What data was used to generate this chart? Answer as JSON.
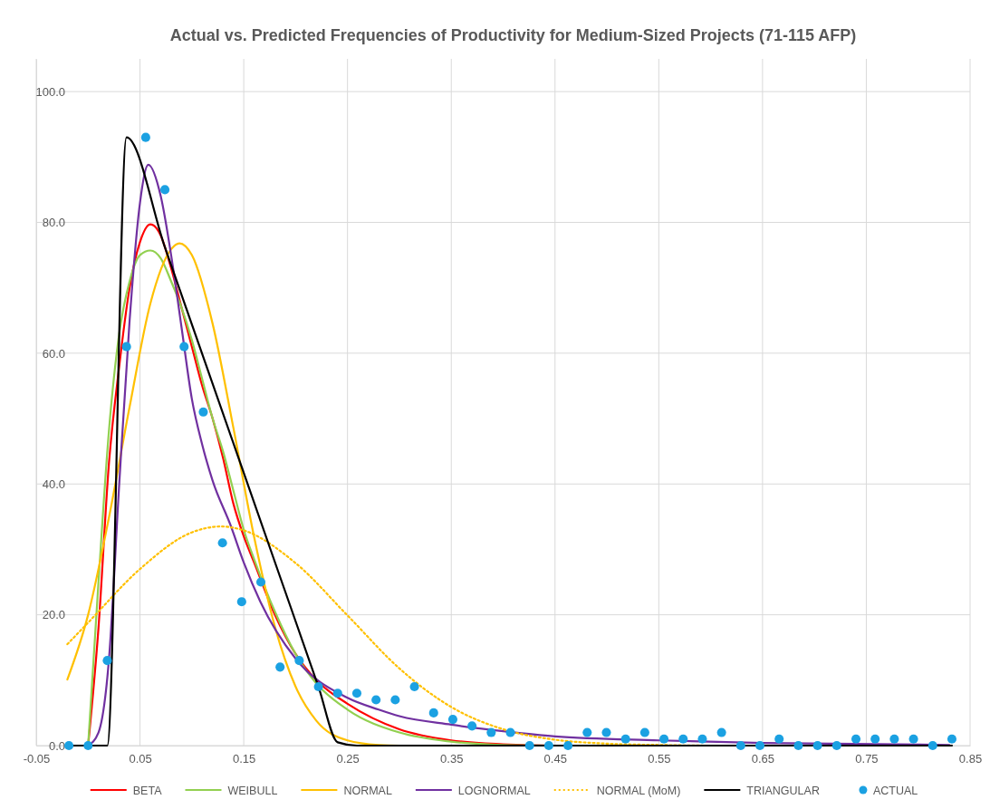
{
  "chart_data": {
    "type": "line",
    "title": "Actual vs. Predicted Frequencies of Productivity for Medium-Sized Projects (71-115 AFP)",
    "xlim": [
      -0.05,
      0.85
    ],
    "xticks": [
      -0.05,
      0.05,
      0.15,
      0.25,
      0.35,
      0.45,
      0.55,
      0.65,
      0.75,
      0.85
    ],
    "ylim": [
      0,
      105
    ],
    "yticks": [
      {
        "value": 0,
        "label": "0.0"
      },
      {
        "value": 20,
        "label": "20.0"
      },
      {
        "value": 40,
        "label": "40.0"
      },
      {
        "value": 60,
        "label": "60.0"
      },
      {
        "value": 80,
        "label": "80.0"
      },
      {
        "value": 100,
        "label": "100.0"
      }
    ],
    "grid": true,
    "legend": "bottom",
    "series": [
      {
        "name": "BETA",
        "color": "#ff0000",
        "line_style": "solid",
        "x": [
          0,
          0.01,
          0.02,
          0.03,
          0.04,
          0.05,
          0.06,
          0.07,
          0.08,
          0.09,
          0.1,
          0.11,
          0.12,
          0.13,
          0.14,
          0.15,
          0.16,
          0.18,
          0.2,
          0.22,
          0.25,
          0.3,
          0.35,
          0.4,
          0.45,
          0.83
        ],
        "values": [
          0,
          18,
          43,
          58,
          70,
          77,
          79.7,
          78,
          73,
          67,
          61,
          55,
          50,
          44,
          37,
          32,
          28,
          20,
          14,
          10,
          6.4,
          2.5,
          0.8,
          0.2,
          0,
          0
        ]
      },
      {
        "name": "WEIBULL",
        "color": "#92d050",
        "line_style": "solid",
        "x": [
          0,
          0.01,
          0.02,
          0.03,
          0.04,
          0.05,
          0.06,
          0.07,
          0.08,
          0.09,
          0.1,
          0.11,
          0.12,
          0.13,
          0.14,
          0.15,
          0.16,
          0.18,
          0.2,
          0.22,
          0.25,
          0.3,
          0.35,
          0.4,
          0.45,
          0.83
        ],
        "values": [
          0,
          25,
          48,
          63,
          71,
          75,
          75.7,
          74.5,
          71,
          67,
          62,
          56,
          50,
          45,
          39,
          33,
          28.5,
          20.5,
          14,
          9.5,
          5.5,
          2,
          0.6,
          0.1,
          0,
          0
        ]
      },
      {
        "name": "NORMAL",
        "color": "#ffc000",
        "line_style": "solid",
        "x": [
          -0.02,
          0,
          0.02,
          0.04,
          0.06,
          0.08,
          0.088,
          0.1,
          0.12,
          0.14,
          0.16,
          0.18,
          0.2,
          0.22,
          0.25,
          0.28,
          0.3,
          0.83
        ],
        "values": [
          10.1,
          20,
          34.8,
          51.8,
          67.6,
          75.9,
          76.8,
          75,
          64.5,
          48.6,
          31.9,
          18.2,
          9,
          3.8,
          0.8,
          0.1,
          0,
          0
        ]
      },
      {
        "name": "LOGNORMAL",
        "color": "#7030a0",
        "line_style": "solid",
        "x": [
          0,
          0.01,
          0.02,
          0.03,
          0.04,
          0.05,
          0.058,
          0.07,
          0.08,
          0.09,
          0.1,
          0.11,
          0.12,
          0.1375,
          0.15,
          0.166,
          0.2,
          0.25,
          0.28,
          0.3,
          0.35,
          0.4,
          0.45,
          0.55,
          0.65,
          0.83
        ],
        "values": [
          0,
          2,
          13,
          40,
          65,
          83,
          88.8,
          84,
          75,
          64,
          53,
          46,
          40.5,
          33.6,
          28,
          22,
          13.3,
          7.3,
          5.5,
          4.5,
          3.2,
          2.2,
          1.4,
          0.8,
          0.4,
          0.1
        ]
      },
      {
        "name": "NORMAL (MoM)",
        "color": "#ffc000",
        "line_style": "dotted",
        "x": [
          -0.02,
          0,
          0.05,
          0.1,
          0.128,
          0.15,
          0.2,
          0.25,
          0.3,
          0.35,
          0.4,
          0.45,
          0.5,
          0.55,
          0.6,
          0.83
        ],
        "values": [
          15.5,
          18.8,
          27,
          32.6,
          33.5,
          32.9,
          27.9,
          19.9,
          11.8,
          5.9,
          2.5,
          0.9,
          0.3,
          0.1,
          0,
          0
        ]
      },
      {
        "name": "TRIANGULAR",
        "color": "#000000",
        "line_style": "solid",
        "x": [
          -0.0185,
          0,
          0.0185,
          0.037,
          0.074,
          0.111,
          0.148,
          0.185,
          0.222,
          0.2405,
          0.259,
          0.8325
        ],
        "values": [
          0,
          0,
          0,
          93,
          76.2,
          59.4,
          42.6,
          25.8,
          9,
          0.5,
          0,
          0
        ]
      },
      {
        "name": "ACTUAL",
        "color": "#1ba1e2",
        "type": "scatter",
        "marker": "circle",
        "x": [
          -0.0185,
          0,
          0.0185,
          0.037,
          0.0555,
          0.074,
          0.0925,
          0.111,
          0.1295,
          0.148,
          0.1665,
          0.185,
          0.2035,
          0.222,
          0.2405,
          0.259,
          0.2775,
          0.296,
          0.3145,
          0.333,
          0.3515,
          0.37,
          0.3885,
          0.407,
          0.4255,
          0.444,
          0.4625,
          0.481,
          0.4995,
          0.518,
          0.5365,
          0.555,
          0.5735,
          0.592,
          0.6105,
          0.629,
          0.6475,
          0.666,
          0.6845,
          0.703,
          0.7215,
          0.74,
          0.7585,
          0.777,
          0.7955,
          0.814,
          0.8325
        ],
        "values": [
          0,
          0,
          13,
          61,
          93,
          85,
          61,
          51,
          31,
          22,
          25,
          12,
          13,
          9,
          8,
          8,
          7,
          7,
          9,
          5,
          4,
          3,
          2,
          2,
          0,
          0,
          0,
          2,
          2,
          1,
          2,
          1,
          1,
          1,
          2,
          0,
          0,
          1,
          0,
          0,
          0,
          1,
          1,
          1,
          1,
          0,
          1
        ]
      }
    ]
  }
}
